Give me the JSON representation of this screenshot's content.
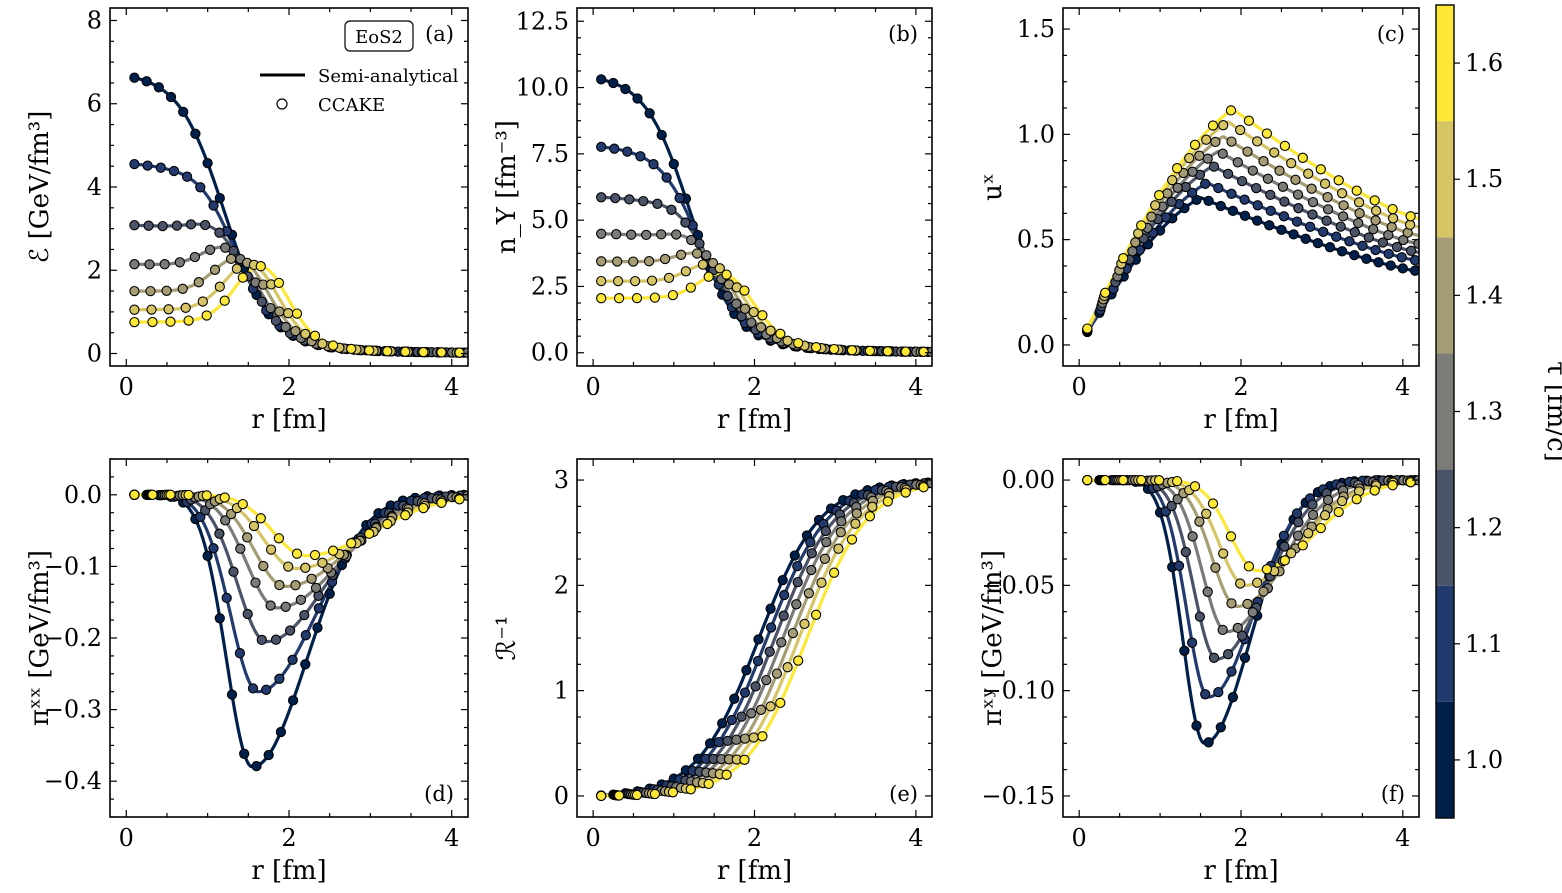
{
  "chart_data": [
    {
      "id": "a",
      "type": "line+scatter",
      "panel_label": "(a)",
      "xlabel": "r [fm]",
      "ylabel": "ℰ [GeV/fm³]",
      "xlim": [
        -0.2,
        4.2
      ],
      "ylim": [
        -0.3,
        8.3
      ],
      "xticks": [
        0,
        2,
        4
      ],
      "yticks": [
        0,
        2,
        4,
        6,
        8
      ],
      "ytick_labels": [
        "0",
        "2",
        "4",
        "6",
        "8"
      ],
      "curves": {
        "kind": "energy",
        "base": [
          [
            1.0,
            6.75,
            0.0
          ],
          [
            1.1,
            4.6,
            0.25
          ],
          [
            1.2,
            3.1,
            0.55
          ],
          [
            1.3,
            2.15,
            0.85
          ],
          [
            1.4,
            1.5,
            1.1
          ],
          [
            1.5,
            1.05,
            1.3
          ],
          [
            1.6,
            0.75,
            1.45
          ]
        ]
      },
      "legend": {
        "eos": "EoS2",
        "line": "Semi-analytical",
        "marker": "CCAKE",
        "placement": "top-right"
      }
    },
    {
      "id": "b",
      "type": "line+scatter",
      "panel_label": "(b)",
      "xlabel": "r [fm]",
      "ylabel": "n_Y [fm⁻³]",
      "xlim": [
        -0.2,
        4.2
      ],
      "ylim": [
        -0.5,
        13.0
      ],
      "xticks": [
        0,
        2,
        4
      ],
      "yticks": [
        0,
        2.5,
        5,
        7.5,
        10,
        12.5
      ],
      "ytick_labels": [
        "0.0",
        "2.5",
        "5.0",
        "7.5",
        "10.0",
        "12.5"
      ],
      "curves": {
        "kind": "density",
        "base": [
          [
            1.0,
            10.5,
            0.0
          ],
          [
            1.1,
            7.85,
            0.2
          ],
          [
            1.2,
            5.9,
            0.45
          ],
          [
            1.3,
            4.5,
            0.7
          ],
          [
            1.4,
            3.45,
            0.95
          ],
          [
            1.5,
            2.7,
            1.15
          ],
          [
            1.6,
            2.05,
            1.3
          ]
        ]
      }
    },
    {
      "id": "c",
      "type": "line+scatter",
      "panel_label": "(c)",
      "xlabel": "r [fm]",
      "ylabel": "uˣ",
      "xlim": [
        -0.2,
        4.2
      ],
      "ylim": [
        -0.1,
        1.6
      ],
      "xticks": [
        0,
        2,
        4
      ],
      "yticks": [
        0,
        0.5,
        1.0,
        1.5
      ],
      "ytick_labels": [
        "0.0",
        "0.5",
        "1.0",
        "1.5"
      ],
      "curves": {
        "kind": "velocity",
        "base": [
          [
            1.0,
            0.7,
            1.5,
            0.35
          ],
          [
            1.1,
            0.77,
            1.58,
            0.4
          ],
          [
            1.2,
            0.85,
            1.65,
            0.44
          ],
          [
            1.3,
            0.92,
            1.72,
            0.48
          ],
          [
            1.4,
            0.99,
            1.78,
            0.52
          ],
          [
            1.5,
            1.06,
            1.84,
            0.56
          ],
          [
            1.6,
            1.12,
            1.9,
            0.6
          ]
        ]
      }
    },
    {
      "id": "d",
      "type": "line+scatter",
      "panel_label": "(d)",
      "xlabel": "r [fm]",
      "ylabel": "πˣˣ [GeV/fm³]",
      "xlim": [
        -0.2,
        4.2
      ],
      "ylim": [
        -0.45,
        0.05
      ],
      "xticks": [
        0,
        2,
        4
      ],
      "yticks": [
        0,
        -0.1,
        -0.2,
        -0.3,
        -0.4
      ],
      "ytick_labels": [
        "0.0",
        "−0.1",
        "−0.2",
        "−0.3",
        "−0.4"
      ],
      "curves": {
        "kind": "dip",
        "base": [
          [
            1.0,
            -0.38,
            1.55,
            0.45
          ],
          [
            1.1,
            -0.275,
            1.62,
            0.48
          ],
          [
            1.2,
            -0.205,
            1.72,
            0.5
          ],
          [
            1.3,
            -0.158,
            1.85,
            0.52
          ],
          [
            1.4,
            -0.128,
            1.95,
            0.53
          ],
          [
            1.5,
            -0.103,
            2.08,
            0.55
          ],
          [
            1.6,
            -0.085,
            2.2,
            0.56
          ]
        ]
      }
    },
    {
      "id": "e",
      "type": "line+scatter",
      "panel_label": "(e)",
      "xlabel": "r [fm]",
      "ylabel": "ℛ⁻¹",
      "xlim": [
        -0.2,
        4.2
      ],
      "ylim": [
        -0.2,
        3.2
      ],
      "xticks": [
        0,
        2,
        4
      ],
      "yticks": [
        0,
        1,
        2,
        3
      ],
      "ytick_labels": [
        "0",
        "1",
        "2",
        "3"
      ],
      "curves": {
        "kind": "sigmoid",
        "base": [
          [
            1.0,
            3.0,
            2.05
          ],
          [
            1.1,
            3.0,
            2.15
          ],
          [
            1.2,
            3.0,
            2.25
          ],
          [
            1.3,
            3.0,
            2.35
          ],
          [
            1.4,
            3.0,
            2.45
          ],
          [
            1.5,
            3.0,
            2.55
          ],
          [
            1.6,
            3.0,
            2.65
          ]
        ]
      }
    },
    {
      "id": "f",
      "type": "line+scatter",
      "panel_label": "(f)",
      "xlabel": "r [fm]",
      "ylabel": "πˣʸ [GeV/fm³]",
      "xlim": [
        -0.2,
        4.2
      ],
      "ylim": [
        -0.16,
        0.01
      ],
      "xticks": [
        0,
        2,
        4
      ],
      "yticks": [
        0,
        -0.05,
        -0.1,
        -0.15
      ],
      "ytick_labels": [
        "0.00",
        "−0.05",
        "−0.10",
        "−0.15"
      ],
      "curves": {
        "kind": "dip",
        "base": [
          [
            1.0,
            -0.125,
            1.55,
            0.38
          ],
          [
            1.1,
            -0.103,
            1.6,
            0.38
          ],
          [
            1.2,
            -0.085,
            1.7,
            0.4
          ],
          [
            1.3,
            -0.072,
            1.82,
            0.42
          ],
          [
            1.4,
            -0.06,
            1.95,
            0.44
          ],
          [
            1.5,
            -0.05,
            2.05,
            0.45
          ],
          [
            1.6,
            -0.043,
            2.2,
            0.47
          ]
        ]
      }
    }
  ],
  "colorbar": {
    "label": "τ [fm/c]",
    "range": [
      0.95,
      1.65
    ],
    "levels": [
      1.0,
      1.1,
      1.2,
      1.3,
      1.4,
      1.5,
      1.6
    ],
    "tick_labels": [
      "1.0",
      "1.1",
      "1.2",
      "1.3",
      "1.4",
      "1.5",
      "1.6"
    ],
    "colors": [
      "#00204c",
      "#223a6e",
      "#4b5368",
      "#7b7b78",
      "#a69d75",
      "#d6c565",
      "#fde737"
    ]
  }
}
